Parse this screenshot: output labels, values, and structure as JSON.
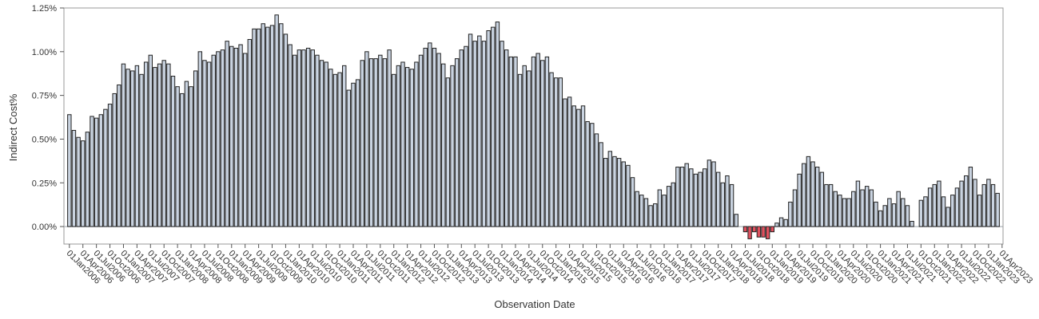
{
  "chart_data": {
    "type": "bar",
    "title": "",
    "xlabel": "Observation Date",
    "ylabel": "Indirect Cost%",
    "ylim": [
      -0.001,
      0.0125
    ],
    "yticks": [
      0,
      0.0025,
      0.005,
      0.0075,
      0.01,
      0.0125
    ],
    "ytick_labels": [
      "0.00%",
      "0.25%",
      "0.50%",
      "0.75%",
      "1.00%",
      "1.25%"
    ],
    "grid": false,
    "legend": "none",
    "colors": {
      "positive": "#c9d3e0",
      "negative": "#e0525f",
      "edge": "#222222",
      "frame": "#999999"
    },
    "xtick_labels": [
      "01Jan2006",
      "01Apr2006",
      "01Jul2006",
      "01Oct2006",
      "01Jan2007",
      "01Apr2007",
      "01Jul2007",
      "01Oct2007",
      "01Jan2008",
      "01Apr2008",
      "01Jul2008",
      "01Oct2008",
      "01Jan2009",
      "01Apr2009",
      "01Jul2009",
      "01Oct2009",
      "01Jan2010",
      "01Apr2010",
      "01Jul2010",
      "01Oct2010",
      "01Jan2011",
      "01Apr2011",
      "01Jul2011",
      "01Oct2011",
      "01Jan2012",
      "01Apr2012",
      "01Jul2012",
      "01Oct2012",
      "01Jan2013",
      "01Apr2013",
      "01Jul2013",
      "01Oct2013",
      "01Jan2014",
      "01Apr2014",
      "01Jul2014",
      "01Oct2014",
      "01Jan2015",
      "01Apr2015",
      "01Jul2015",
      "01Oct2015",
      "01Jan2016",
      "01Apr2016",
      "01Jul2016",
      "01Oct2016",
      "01Jan2017",
      "01Apr2017",
      "01Jul2017",
      "01Oct2017",
      "01Jan2018",
      "01Apr2018",
      "01Jul2018",
      "01Oct2018",
      "01Jan2019",
      "01Apr2019",
      "01Jul2019",
      "01Oct2019",
      "01Jan2020",
      "01Apr2020",
      "01Jul2020",
      "01Oct2020",
      "01Jan2021",
      "01Apr2021",
      "01Jul2021",
      "01Oct2021",
      "01Jan2022",
      "01Apr2022",
      "01Jul2022",
      "01Oct2022",
      "01Jan2023",
      "01Apr2023"
    ],
    "series": [
      {
        "values": [
          0.0064,
          0.0055,
          0.0051,
          0.0049,
          0.0054,
          0.0063,
          0.0062,
          0.0064,
          0.0067,
          0.007,
          0.0076,
          0.0081,
          0.0093,
          0.009,
          0.0089,
          0.0092,
          0.0087,
          0.0094,
          0.0098,
          0.0091,
          0.0093,
          0.0095,
          0.0093,
          0.0086,
          0.008,
          0.0076,
          0.0083,
          0.008,
          0.0089,
          0.01,
          0.0095,
          0.0094,
          0.0098,
          0.01,
          0.0101,
          0.0106,
          0.0103,
          0.0102,
          0.0104,
          0.0099,
          0.0107,
          0.0113,
          0.0113,
          0.0116,
          0.0114,
          0.0115,
          0.0121,
          0.0116,
          0.011,
          0.0104,
          0.0098,
          0.0101,
          0.0101,
          0.0102,
          0.0101,
          0.0098,
          0.0095,
          0.0094,
          0.009,
          0.0087,
          0.0088,
          0.0092,
          0.0078,
          0.0082,
          0.0084,
          0.0095,
          0.01,
          0.0096,
          0.0096,
          0.0098,
          0.0096,
          0.0101,
          0.0087,
          0.0092,
          0.0094,
          0.0091,
          0.009,
          0.0094,
          0.0098,
          0.0102,
          0.0105,
          0.0102,
          0.0099,
          0.0093,
          0.0085,
          0.0092,
          0.0096,
          0.0101,
          0.0103,
          0.011,
          0.0106,
          0.0109,
          0.0106,
          0.0112,
          0.0114,
          0.0117,
          0.0106,
          0.0101,
          0.0097,
          0.0097,
          0.0087,
          0.0092,
          0.0089,
          0.0097,
          0.0099,
          0.0095,
          0.0097,
          0.0088,
          0.0085,
          0.0085,
          0.0073,
          0.0074,
          0.0069,
          0.0067,
          0.0069,
          0.006,
          0.0059,
          0.0053,
          0.0048,
          0.0039,
          0.0043,
          0.004,
          0.0039,
          0.0037,
          0.0035,
          0.0028,
          0.002,
          0.0018,
          0.0016,
          0.0012,
          0.0013,
          0.0021,
          0.0018,
          0.0023,
          0.0025,
          0.0034,
          0.0034,
          0.0036,
          0.0033,
          0.003,
          0.0031,
          0.0033,
          0.0038,
          0.0037,
          0.0031,
          0.0025,
          0.0029,
          0.0024,
          0.0007,
          0,
          -0.0003,
          -0.0007,
          -0.0003,
          -0.0006,
          -0.0006,
          -0.0007,
          -0.0003,
          0.0002,
          0.0005,
          0.0004,
          0.0014,
          0.0021,
          0.003,
          0.0036,
          0.004,
          0.0037,
          0.0034,
          0.0031,
          0.0024,
          0.0024,
          0.002,
          0.0018,
          0.0016,
          0.0016,
          0.002,
          0.0026,
          0.0021,
          0.0023,
          0.0021,
          0.0014,
          0.0009,
          0.0012,
          0.0016,
          0.0013,
          0.002,
          0.0016,
          0.0012,
          0.0003,
          0,
          0.0015,
          0.0017,
          0.0022,
          0.0024,
          0.0026,
          0.0017,
          0.0011,
          0.0018,
          0.0022,
          0.0026,
          0.0029,
          0.0034,
          0.0027,
          0.0018,
          0.0024,
          0.0027,
          0.0024,
          0.0019
        ]
      }
    ]
  }
}
